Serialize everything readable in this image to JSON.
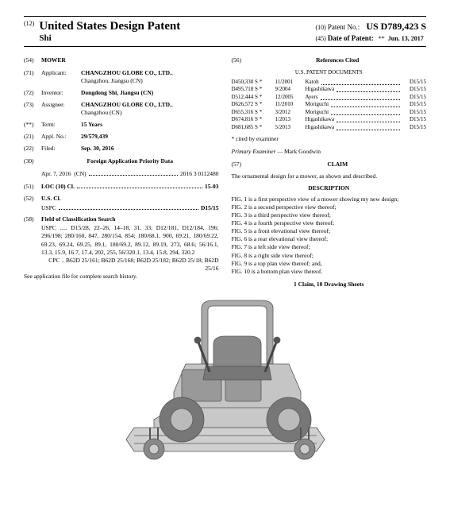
{
  "header": {
    "num12": "(12)",
    "title": "United States Design Patent",
    "inventor_line": "Shi",
    "num10": "(10)",
    "patent_no_label": "Patent No.:",
    "patent_no": "US D789,423 S",
    "num45": "(45)",
    "date_label": "Date of Patent:",
    "date_star": "**",
    "date": "Jun. 13, 2017"
  },
  "left": {
    "f54": {
      "num": "(54)",
      "label": "MOWER"
    },
    "f71": {
      "num": "(71)",
      "label": "Applicant:",
      "val": "CHANGZHOU GLOBE CO., LTD.",
      "val2": "Changzhou, Jiangsu (CN)"
    },
    "f72": {
      "num": "(72)",
      "label": "Inventor:",
      "val": "Dongdong Shi, Jiangsu (CN)"
    },
    "f73": {
      "num": "(73)",
      "label": "Assignee:",
      "val": "CHANGZHOU GLOBE CO., LTD.",
      "val2": "Changzhou (CN)"
    },
    "fterm": {
      "num": "(**)",
      "label": "Term:",
      "val": "15 Years"
    },
    "f21": {
      "num": "(21)",
      "label": "Appl. No.:",
      "val": "29/579,439"
    },
    "f22": {
      "num": "(22)",
      "label": "Filed:",
      "val": "Sep. 30, 2016"
    },
    "f30": {
      "num": "(30)",
      "label": "Foreign Application Priority Data"
    },
    "priority": {
      "date": "Apr. 7, 2016",
      "country": "(CN)",
      "appno": "2016 3 0112480"
    },
    "f51": {
      "num": "(51)",
      "label": "LOC (10) Cl.",
      "val": "15-03"
    },
    "f52": {
      "num": "(52)",
      "label": "U.S. Cl.",
      "sub": "USPC",
      "val": "D15/15"
    },
    "f58": {
      "num": "(58)",
      "label": "Field of Classification Search",
      "uspc": "USPC ..... D15/28, 22–26, 14–18, 31, 33; D12/181, D12/184, 196; 296/198; 280/160, 847, 280/154, 854; 180/68.1, 900, 69.21, 180/69.22, 69.23, 69.24, 69.25, 89.1, 180/69.2, 89.12, 89.19, 273, 68.6; 56/16.1, 13.3, 15.9, 16.7, 17.4, 202, 255, 56/320.1, 13.4, 15.8, 294, 320.2",
      "cpc": "CPC .. B62D 25/161; B62D 25/168; B62D 25/182; B62D 25/18; B62D 25/16",
      "note": "See application file for complete search history."
    }
  },
  "right": {
    "f56": {
      "num": "(56)",
      "label": "References Cited"
    },
    "refs_title": "U.S. PATENT DOCUMENTS",
    "refs": [
      {
        "n": "D450,330 S *",
        "d": "11/2001",
        "a": "Katoh",
        "c": "D15/15"
      },
      {
        "n": "D495,718 S *",
        "d": "9/2004",
        "a": "Higashikawa",
        "c": "D15/15"
      },
      {
        "n": "D512,444 S *",
        "d": "12/2005",
        "a": "Ayers",
        "c": "D15/15"
      },
      {
        "n": "D626,572 S *",
        "d": "11/2010",
        "a": "Moriguchi",
        "c": "D15/15"
      },
      {
        "n": "D655,316 S *",
        "d": "3/2012",
        "a": "Moriguchi",
        "c": "D15/15"
      },
      {
        "n": "D674,816 S *",
        "d": "1/2013",
        "a": "Higashikawa",
        "c": "D15/15"
      },
      {
        "n": "D681,685 S *",
        "d": "5/2013",
        "a": "Higashikawa",
        "c": "D15/15"
      }
    ],
    "cited_note": "* cited by examiner",
    "examiner_label": "Primary Examiner —",
    "examiner": "Mark Goodwin",
    "f57": {
      "num": "(57)",
      "label": "CLAIM"
    },
    "claim_text": "The ornamental design for a mower, as shown and described.",
    "desc_title": "DESCRIPTION",
    "figs": [
      "FIG. 1 is a first perspective view of a mower showing my new design;",
      "FIG. 2 is a second perspective view thereof;",
      "FIG. 3 is a third perspective view thereof;",
      "FIG. 4 is a fourth perspective view thereof;",
      "FIG. 5 is a front elevational view thereof;",
      "FIG. 6 is a rear elevational view thereof;",
      "FIG. 7 is a left side view thereof;",
      "FIG. 8 is a right side view thereof;",
      "FIG. 9 is a top plan view thereof; and,",
      "FIG. 10 is a bottom plan view thereof."
    ],
    "claims_sheets": "1 Claim, 10 Drawing Sheets"
  },
  "colors": {
    "line": "#666666",
    "fill": "#b8b8b8",
    "dark": "#4a4a4a"
  }
}
